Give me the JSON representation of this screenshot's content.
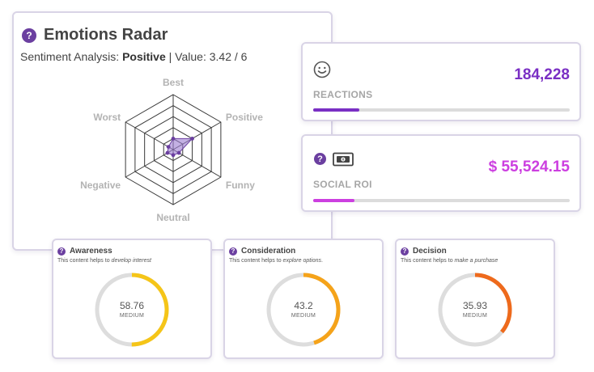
{
  "radar": {
    "title": "Emotions Radar",
    "subtitle_prefix": "Sentiment Analysis: ",
    "sentiment": "Positive",
    "value_text": " | Value: 3.42 / 6",
    "axes": [
      "Best",
      "Positive",
      "Funny",
      "Neutral",
      "Negative",
      "Worst"
    ],
    "scores": [
      1,
      2,
      0.6,
      0.5,
      0.6,
      0.5
    ],
    "max": 5,
    "fill_color": "#9b7bd0",
    "point_color": "#6b3fa0"
  },
  "reactions": {
    "icon": "smiley-face-icon",
    "label": "REACTIONS",
    "value": "184,228",
    "color": "#7a2fc4",
    "progress": 0.18
  },
  "social_roi": {
    "icons": [
      "help-icon",
      "money-bill-icon"
    ],
    "label": "SOCIAL ROI",
    "value": "$ 55,524.15",
    "color": "#cc3fe0",
    "progress": 0.16
  },
  "gauges": [
    {
      "title": "Awareness",
      "desc_prefix": "This content helps to ",
      "desc_em": "develop interest",
      "desc_suffix": "",
      "value": "58.76",
      "level": "MEDIUM",
      "percent": 0.5,
      "color": "#f5c518"
    },
    {
      "title": "Consideration",
      "desc_prefix": "This content helps to ",
      "desc_em": "explore options",
      "desc_suffix": ".",
      "value": "43.2",
      "level": "MEDIUM",
      "percent": 0.45,
      "color": "#f5a31a"
    },
    {
      "title": "Decision",
      "desc_prefix": "This content helps to ",
      "desc_em": "make a purchase",
      "desc_suffix": "",
      "value": "35.93",
      "level": "MEDIUM",
      "percent": 0.36,
      "color": "#ee6a1c"
    }
  ]
}
